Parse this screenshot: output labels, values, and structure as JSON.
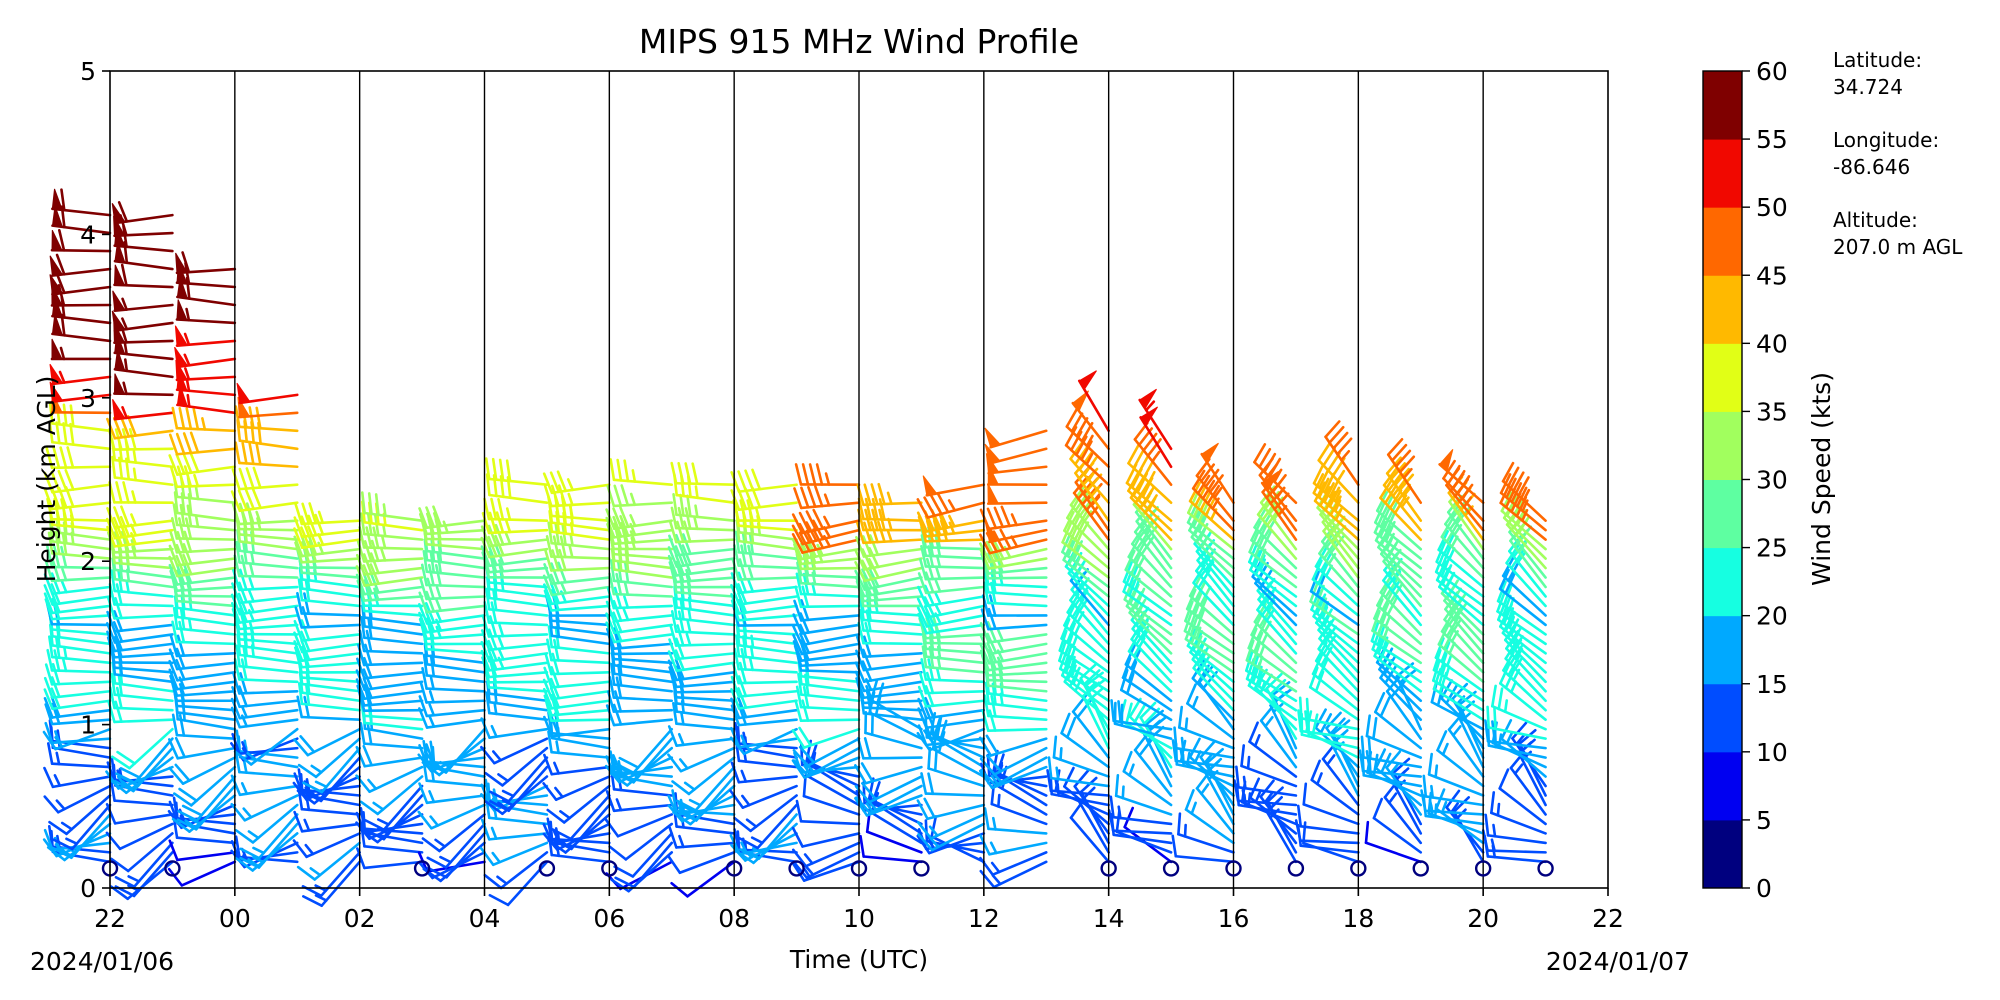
{
  "chart_data": {
    "type": "wind-barb-profile",
    "title": "MIPS 915 MHz Wind Profile",
    "xlabel": "Time (UTC)",
    "ylabel": "Height (km AGL)",
    "x_start_date": "2024/01/06",
    "x_end_date": "2024/01/07",
    "xlim_hours": [
      22,
      46
    ],
    "ylim": [
      0,
      5
    ],
    "x_tick_labels": [
      "22",
      "00",
      "02",
      "04",
      "06",
      "08",
      "10",
      "12",
      "14",
      "16",
      "18",
      "20",
      "22"
    ],
    "y_tick_labels": [
      "0",
      "1",
      "2",
      "3",
      "4",
      "5"
    ],
    "vertical_grid_lines_every_hours": 2,
    "colorbar": {
      "label": "Wind Speed (kts)",
      "bounds": [
        0,
        5,
        10,
        15,
        20,
        25,
        30,
        35,
        40,
        45,
        50,
        55,
        60
      ],
      "tick_labels": [
        "0",
        "5",
        "10",
        "15",
        "20",
        "25",
        "30",
        "35",
        "40",
        "45",
        "50",
        "55",
        "60"
      ],
      "colors": [
        "#00007f",
        "#0000f1",
        "#004dff",
        "#00a9ff",
        "#16ffe1",
        "#5effa1",
        "#a1ff5e",
        "#e1ff16",
        "#ffb900",
        "#ff6800",
        "#f10800",
        "#7f0000"
      ]
    },
    "profiles": [
      {
        "time": "22:00",
        "top_km": 4.2,
        "calm_near_surface": true
      },
      {
        "time": "23:00",
        "top_km": 4.2,
        "calm_near_surface": true
      },
      {
        "time": "00:00",
        "top_km": 3.8,
        "calm_near_surface": false
      },
      {
        "time": "01:00",
        "top_km": 3.1,
        "calm_near_surface": false
      },
      {
        "time": "02:00",
        "top_km": 2.3,
        "calm_near_surface": false
      },
      {
        "time": "03:00",
        "top_km": 2.3,
        "calm_near_surface": true
      },
      {
        "time": "04:00",
        "top_km": 2.3,
        "calm_near_surface": false
      },
      {
        "time": "05:00",
        "top_km": 2.5,
        "calm_near_surface": true
      },
      {
        "time": "06:00",
        "top_km": 2.5,
        "calm_near_surface": true
      },
      {
        "time": "07:00",
        "top_km": 2.5,
        "calm_near_surface": false
      },
      {
        "time": "08:00",
        "top_km": 2.5,
        "calm_near_surface": true
      },
      {
        "time": "09:00",
        "top_km": 2.5,
        "calm_near_surface": true
      },
      {
        "time": "10:00",
        "top_km": 2.5,
        "calm_near_surface": true
      },
      {
        "time": "11:00",
        "top_km": 2.4,
        "calm_near_surface": true
      },
      {
        "time": "12:00",
        "top_km": 2.5,
        "calm_near_surface": false
      },
      {
        "time": "13:00",
        "top_km": 2.8,
        "calm_near_surface": false
      },
      {
        "time": "14:00",
        "top_km": 2.8,
        "calm_near_surface": true
      },
      {
        "time": "15:00",
        "top_km": 2.7,
        "calm_near_surface": true
      },
      {
        "time": "16:00",
        "top_km": 2.4,
        "calm_near_surface": true
      },
      {
        "time": "17:00",
        "top_km": 2.4,
        "calm_near_surface": true
      },
      {
        "time": "18:00",
        "top_km": 2.5,
        "calm_near_surface": true
      },
      {
        "time": "19:00",
        "top_km": 2.4,
        "calm_near_surface": true
      },
      {
        "time": "20:00",
        "top_km": 2.4,
        "calm_near_surface": true
      },
      {
        "time": "21:00",
        "top_km": 2.3,
        "calm_near_surface": true
      }
    ]
  },
  "station_info": {
    "latitude_label": "Latitude:",
    "latitude_value": "34.724",
    "longitude_label": "Longitude:",
    "longitude_value": "-86.646",
    "altitude_label": "Altitude:",
    "altitude_value": "207.0 m AGL"
  }
}
